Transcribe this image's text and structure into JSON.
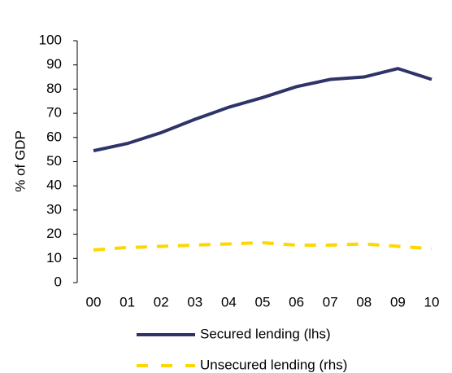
{
  "chart_data": {
    "type": "line",
    "y_label": "% of GDP",
    "categories": [
      "00",
      "01",
      "02",
      "03",
      "04",
      "05",
      "06",
      "07",
      "08",
      "09",
      "10"
    ],
    "series": [
      {
        "name": "Secured lending (lhs)",
        "color": "#2e3469",
        "style": "solid",
        "values": [
          54.5,
          57.5,
          62,
          67.5,
          72.5,
          76.5,
          81,
          84,
          85,
          88.5,
          84
        ]
      },
      {
        "name": "Unsecured lending (rhs)",
        "color": "#ffd700",
        "style": "dashed",
        "values": [
          13.5,
          14.5,
          15,
          15.5,
          16,
          16.5,
          15.5,
          15.5,
          16,
          15,
          14
        ]
      }
    ],
    "ylim": [
      0,
      100
    ],
    "yticks": [
      0,
      10,
      20,
      30,
      40,
      50,
      60,
      70,
      80,
      90,
      100
    ]
  }
}
